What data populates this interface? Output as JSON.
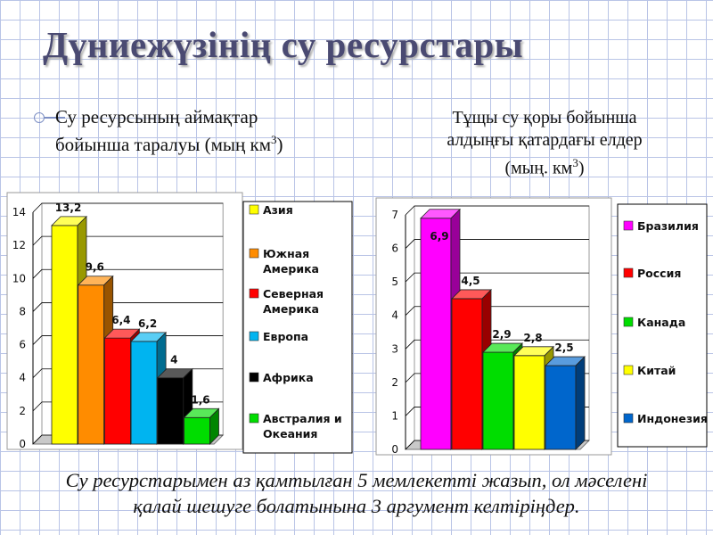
{
  "slide": {
    "title": "Дүниежүзінің су ресурстары",
    "left_caption_line1": "Су ресурсының аймақтар",
    "left_caption_line2": "бойынша таралуы (мың  км",
    "right_caption_line1": "Тұщы су қоры бойынша",
    "right_caption_line2": "алдыңғы қатардағы  елдер",
    "right_caption_line3": "(мың. км",
    "cube_superscript": "3",
    "caption_close": ")",
    "footer_line1": "Су ресурстарымен аз қамтылған 5 мемлекетті жазып, ол мәселені",
    "footer_line2": "қалай шешуге болатынына 3 аргумент келтіріңдер."
  },
  "chart_data": [
    {
      "type": "bar",
      "title": "",
      "categories": [
        "Азия",
        "Южная Америка",
        "Северная Америка",
        "Европа",
        "Африка",
        "Австралия и Океания"
      ],
      "legend_lines": [
        [
          "Азия"
        ],
        [
          "Южная",
          "Америка"
        ],
        [
          "Северная",
          "Америка"
        ],
        [
          "Европа"
        ],
        [
          "Африка"
        ],
        [
          "Австралия и",
          "Океания"
        ]
      ],
      "values": [
        13.2,
        9.6,
        6.4,
        6.2,
        4,
        1.6
      ],
      "data_labels": [
        "13,2",
        "9,6",
        "6,4",
        "6,2",
        "4",
        "1,6"
      ],
      "colors": [
        "#ffff00",
        "#ff8c00",
        "#ff0000",
        "#00b4f0",
        "#000000",
        "#00dd00"
      ],
      "ylim": [
        0,
        14
      ],
      "yticks": [
        0,
        2,
        4,
        6,
        8,
        10,
        12,
        14
      ],
      "grid": true,
      "legend": "right",
      "style": "3d"
    },
    {
      "type": "bar",
      "title": "",
      "categories": [
        "Бразилия",
        "Россия",
        "Канада",
        "Китай",
        "Индонезия"
      ],
      "legend_lines": [
        [
          "Бразилия"
        ],
        [
          "Россия"
        ],
        [
          "Канада"
        ],
        [
          "Китай"
        ],
        [
          "Индонезия"
        ]
      ],
      "values": [
        6.9,
        4.5,
        2.9,
        2.8,
        2.5
      ],
      "data_labels": [
        "6,9",
        "4,5",
        "2,9",
        "2,8",
        "2,5"
      ],
      "colors": [
        "#ff00ff",
        "#ff0000",
        "#00dd00",
        "#ffff00",
        "#0066cc"
      ],
      "ylim": [
        0,
        7
      ],
      "yticks": [
        0,
        1,
        2,
        3,
        4,
        5,
        6,
        7
      ],
      "grid": true,
      "legend": "right",
      "style": "3d"
    }
  ]
}
